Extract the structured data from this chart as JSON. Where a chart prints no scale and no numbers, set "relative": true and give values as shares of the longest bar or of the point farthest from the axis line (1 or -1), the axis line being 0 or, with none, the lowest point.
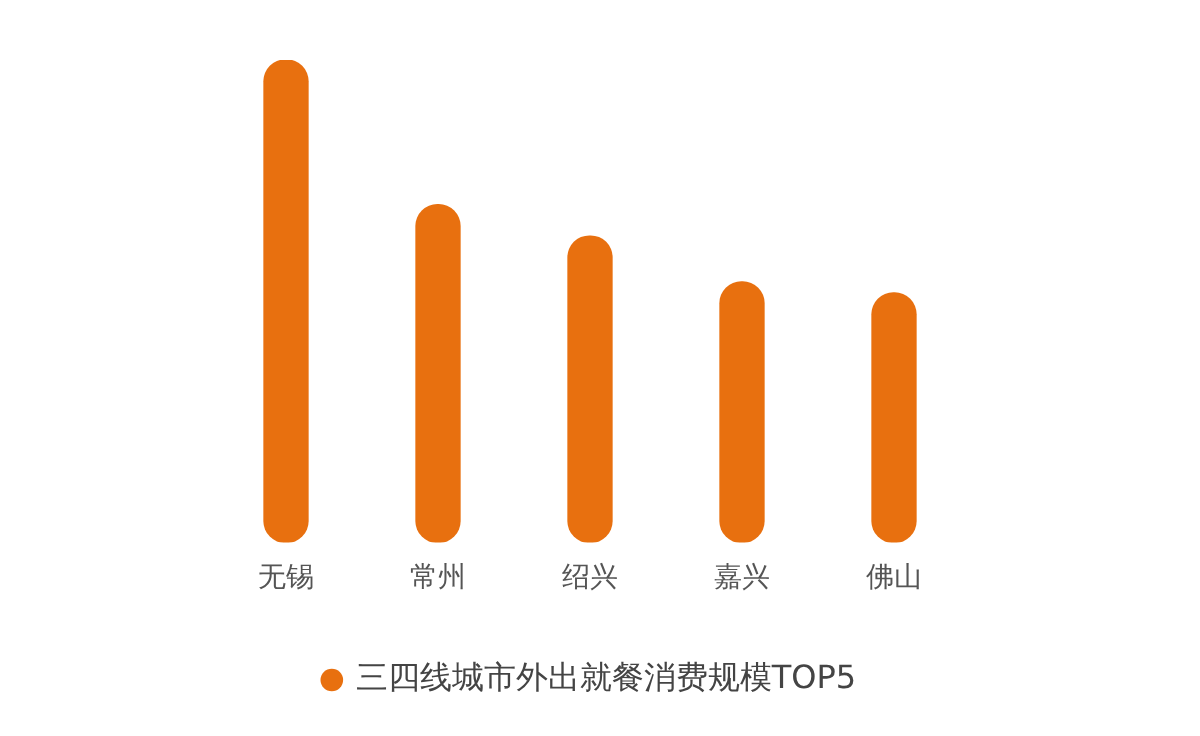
{
  "chart_data": {
    "type": "bar",
    "relative": true,
    "categories": [
      "无锡",
      "常州",
      "绍兴",
      "嘉兴",
      "佛山"
    ],
    "series": [
      {
        "name": "三四线城市外出就餐消费规模TOP5",
        "color": "#e8700f",
        "values": [
          1,
          0.7,
          0.635,
          0.54,
          0.517
        ]
      }
    ],
    "legend": "bottom",
    "grid": false
  }
}
